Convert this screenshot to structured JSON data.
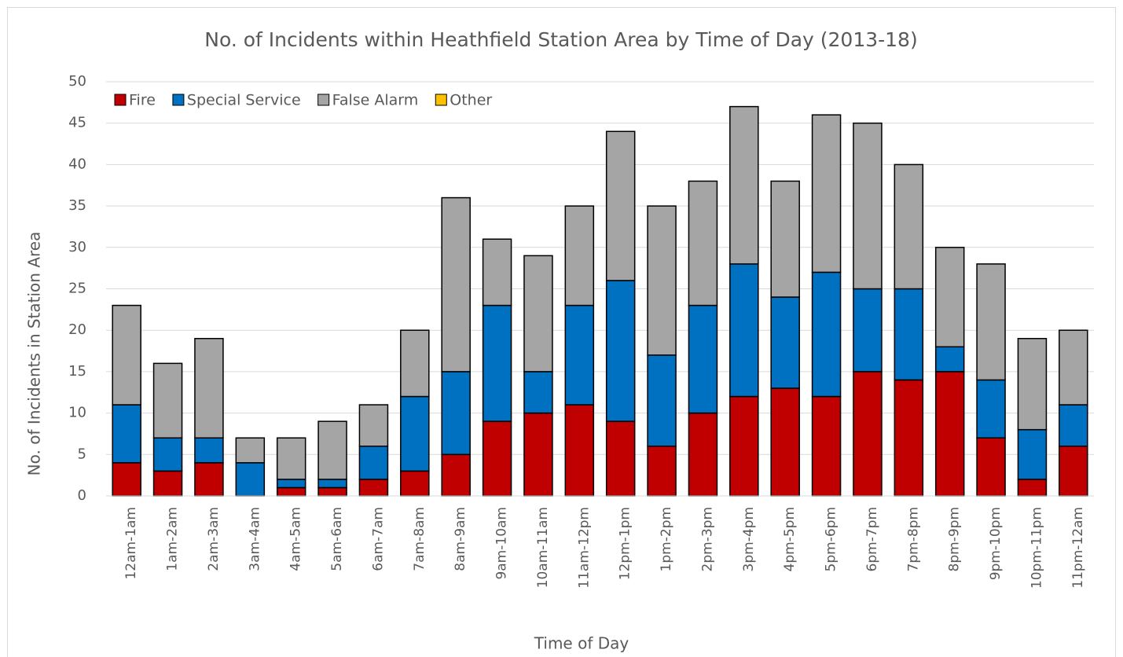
{
  "chart_data": {
    "type": "stacked_bar",
    "title": "No. of Incidents within Heathfield Station Area by Time of Day (2013-18)",
    "x_label": "Time of Day",
    "y_label": "No. of Incidents in Station Area",
    "categories": [
      "12am-1am",
      "1am-2am",
      "2am-3am",
      "3am-4am",
      "4am-5am",
      "5am-6am",
      "6am-7am",
      "7am-8am",
      "8am-9am",
      "9am-10am",
      "10am-11am",
      "11am-12pm",
      "12pm-1pm",
      "1pm-2pm",
      "2pm-3pm",
      "3pm-4pm",
      "4pm-5pm",
      "5pm-6pm",
      "6pm-7pm",
      "7pm-8pm",
      "8pm-9pm",
      "9pm-10pm",
      "10pm-11pm",
      "11pm-12am"
    ],
    "series": [
      {
        "name": "Fire",
        "color": "#c00000",
        "values": [
          4,
          3,
          4,
          0,
          1,
          1,
          2,
          3,
          5,
          9,
          10,
          11,
          9,
          6,
          10,
          12,
          13,
          12,
          15,
          14,
          15,
          7,
          2,
          6
        ]
      },
      {
        "name": "Special Service",
        "color": "#0070c0",
        "values": [
          7,
          4,
          3,
          4,
          1,
          1,
          4,
          9,
          10,
          14,
          5,
          12,
          17,
          11,
          13,
          16,
          11,
          15,
          10,
          11,
          3,
          7,
          6,
          5
        ]
      },
      {
        "name": "False Alarm",
        "color": "#a5a5a5",
        "values": [
          12,
          9,
          12,
          3,
          5,
          7,
          5,
          8,
          21,
          8,
          14,
          12,
          18,
          18,
          15,
          19,
          14,
          19,
          20,
          15,
          12,
          14,
          11,
          9
        ]
      },
      {
        "name": "Other",
        "color": "#ffc000",
        "values": [
          0,
          0,
          0,
          0,
          0,
          0,
          0,
          0,
          0,
          0,
          0,
          0,
          0,
          0,
          0,
          0,
          0,
          0,
          0,
          0,
          0,
          0,
          0,
          0
        ]
      }
    ],
    "ylim": [
      0,
      50
    ],
    "yticks": [
      0,
      5,
      10,
      15,
      20,
      25,
      30,
      35,
      40,
      45,
      50
    ],
    "grid": true,
    "legend": "top-left"
  }
}
